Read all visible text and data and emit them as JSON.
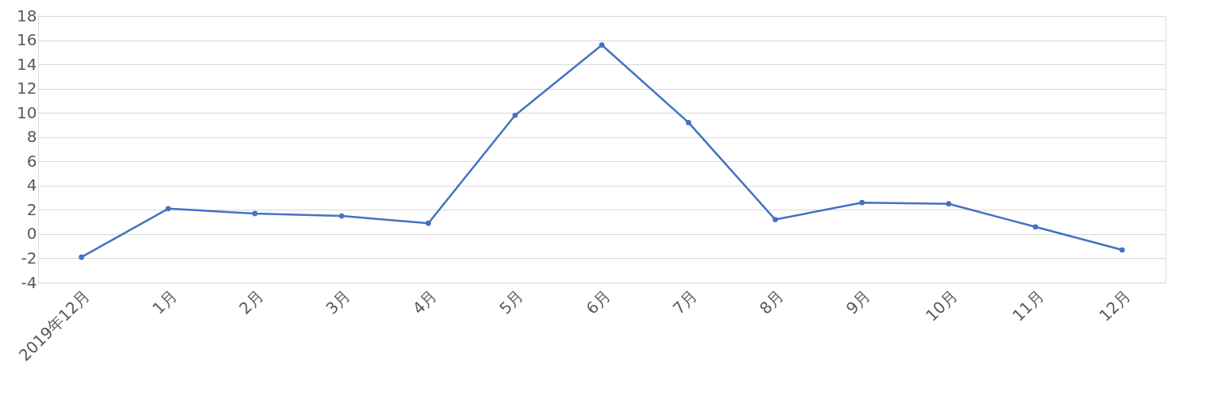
{
  "chart_data": {
    "type": "line",
    "categories": [
      "2019年12月",
      "1月",
      "2月",
      "3月",
      "4月",
      "5月",
      "6月",
      "7月",
      "8月",
      "9月",
      "10月",
      "11月",
      "12月"
    ],
    "series": [
      {
        "color": "#4472c4",
        "values": [
          -1.9,
          2.1,
          1.7,
          1.5,
          0.9,
          9.8,
          15.6,
          9.2,
          1.2,
          2.6,
          2.5,
          0.6,
          -1.3
        ]
      }
    ],
    "ylim": [
      -4,
      18
    ],
    "yticks": [
      -4,
      -2,
      0,
      2,
      4,
      6,
      8,
      10,
      12,
      14,
      16,
      18
    ],
    "grid": "y",
    "marker": "circle",
    "line_style": "solid"
  }
}
